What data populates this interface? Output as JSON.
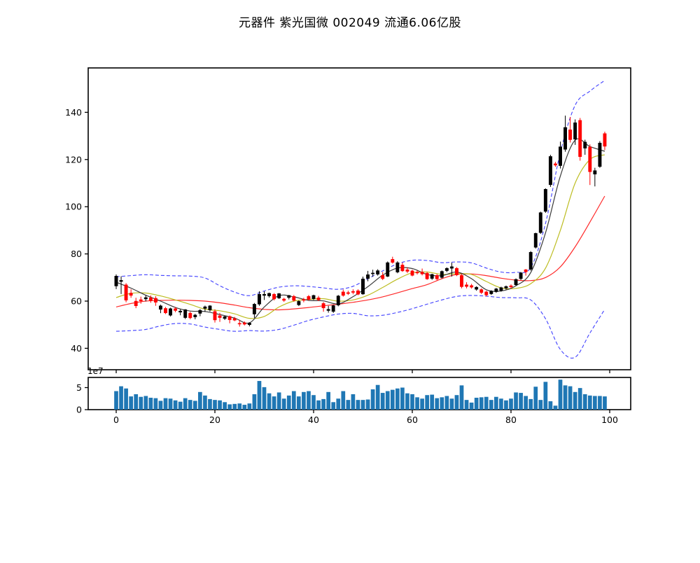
{
  "title": "元器件  紫光国微  002049  流通6.06亿股",
  "chart_data": {
    "type": "candlestick",
    "title": "元器件  紫光国微  002049  流通6.06亿股",
    "panels": [
      "price",
      "volume"
    ],
    "price_axis": {
      "ticks": [
        40,
        60,
        80,
        100,
        120,
        140
      ],
      "range": [
        31,
        159
      ]
    },
    "index_axis": {
      "ticks": [
        0,
        20,
        40,
        60,
        80,
        100
      ],
      "range": [
        -5.7,
        104.3
      ]
    },
    "volume_axis": {
      "ticks": [
        0,
        5
      ],
      "offset_label": "1e7",
      "range": [
        0,
        7.3
      ],
      "unit": "1e7"
    },
    "grid": false,
    "legend": "none",
    "colors": {
      "up": "#000000",
      "down": "#ff0000",
      "ma_fast": "#3a3a3a",
      "ma_mid": "#bdbd22",
      "ma_slow": "#ff2a2a",
      "band": "#4040ff",
      "volume": "#1f77b4",
      "frame": "#000000"
    },
    "candles_format": [
      "open",
      "high",
      "low",
      "close"
    ],
    "candles": [
      [
        66.4,
        71.3,
        65.1,
        70.6
      ],
      [
        68.3,
        70.5,
        63.0,
        68.8
      ],
      [
        66.9,
        67.6,
        59.5,
        60.4
      ],
      [
        63.4,
        65.0,
        61.4,
        62.4
      ],
      [
        60.0,
        61.4,
        57.0,
        58.0
      ],
      [
        60.6,
        61.9,
        58.9,
        60.1
      ],
      [
        60.9,
        62.4,
        59.9,
        61.5
      ],
      [
        61.4,
        62.4,
        59.3,
        60.2
      ],
      [
        61.2,
        62.1,
        58.0,
        59.5
      ],
      [
        56.5,
        58.5,
        54.9,
        58.0
      ],
      [
        56.9,
        57.5,
        54.5,
        55.0
      ],
      [
        54.0,
        57.2,
        53.5,
        56.8
      ],
      [
        56.8,
        57.5,
        55.3,
        56.0
      ],
      [
        55.3,
        56.5,
        54.0,
        55.8
      ],
      [
        53.0,
        56.6,
        52.4,
        56.4
      ],
      [
        54.9,
        55.5,
        52.3,
        52.9
      ],
      [
        53.3,
        54.6,
        52.3,
        54.1
      ],
      [
        54.8,
        56.6,
        53.6,
        56.1
      ],
      [
        56.9,
        58.1,
        55.4,
        57.6
      ],
      [
        56.2,
        58.3,
        55.6,
        58.0
      ],
      [
        55.6,
        56.5,
        50.9,
        52.0
      ],
      [
        53.8,
        55.0,
        51.2,
        53.0
      ],
      [
        52.6,
        53.8,
        52.0,
        53.4
      ],
      [
        53.5,
        53.9,
        50.6,
        52.1
      ],
      [
        52.6,
        53.3,
        51.5,
        51.9
      ],
      [
        50.6,
        52.1,
        49.2,
        50.4
      ],
      [
        50.8,
        51.4,
        49.7,
        50.2
      ],
      [
        50.0,
        51.0,
        49.3,
        50.7
      ],
      [
        54.5,
        59.2,
        52.9,
        58.7
      ],
      [
        58.7,
        64.2,
        58.0,
        62.9
      ],
      [
        62.4,
        64.2,
        60.5,
        62.9
      ],
      [
        62.2,
        63.6,
        61.5,
        63.3
      ],
      [
        62.9,
        63.4,
        60.3,
        60.9
      ],
      [
        61.3,
        63.4,
        60.9,
        63.2
      ],
      [
        60.9,
        61.4,
        59.7,
        60.3
      ],
      [
        61.5,
        62.6,
        60.7,
        62.4
      ],
      [
        62.0,
        62.6,
        59.8,
        60.3
      ],
      [
        58.4,
        60.3,
        57.9,
        59.9
      ],
      [
        60.7,
        61.4,
        59.5,
        60.3
      ],
      [
        62.0,
        62.6,
        60.2,
        60.7
      ],
      [
        61.0,
        62.7,
        60.5,
        62.4
      ],
      [
        61.4,
        62.2,
        60.0,
        60.5
      ],
      [
        59.0,
        59.6,
        55.5,
        57.1
      ],
      [
        56.0,
        58.0,
        55.1,
        56.5
      ],
      [
        55.6,
        58.4,
        55.0,
        58.1
      ],
      [
        58.3,
        62.6,
        57.8,
        62.2
      ],
      [
        63.9,
        64.9,
        61.9,
        62.4
      ],
      [
        63.6,
        64.4,
        62.6,
        63.2
      ],
      [
        64.1,
        65.0,
        62.9,
        63.7
      ],
      [
        64.4,
        65.0,
        62.5,
        62.9
      ],
      [
        63.0,
        70.4,
        62.7,
        69.4
      ],
      [
        69.6,
        72.8,
        68.4,
        71.2
      ],
      [
        71.6,
        73.3,
        70.3,
        71.9
      ],
      [
        71.4,
        73.5,
        70.8,
        72.9
      ],
      [
        70.9,
        72.3,
        68.9,
        69.5
      ],
      [
        70.5,
        76.8,
        70.2,
        76.3
      ],
      [
        77.7,
        78.8,
        75.9,
        76.4
      ],
      [
        72.3,
        76.9,
        71.8,
        76.3
      ],
      [
        75.3,
        76.3,
        72.4,
        72.8
      ],
      [
        73.3,
        74.3,
        71.9,
        72.6
      ],
      [
        72.8,
        73.3,
        70.5,
        70.9
      ],
      [
        72.3,
        73.0,
        71.3,
        71.9
      ],
      [
        72.3,
        73.8,
        70.9,
        71.5
      ],
      [
        71.8,
        72.4,
        69.0,
        69.4
      ],
      [
        69.6,
        71.6,
        69.0,
        71.3
      ],
      [
        70.9,
        71.5,
        68.9,
        69.4
      ],
      [
        70.0,
        73.0,
        69.6,
        72.6
      ],
      [
        72.9,
        74.3,
        72.3,
        73.9
      ],
      [
        73.9,
        76.3,
        70.4,
        74.6
      ],
      [
        73.9,
        74.4,
        70.6,
        71.1
      ],
      [
        70.9,
        71.4,
        65.4,
        66.1
      ],
      [
        66.9,
        68.0,
        65.4,
        66.2
      ],
      [
        66.6,
        67.3,
        65.3,
        65.9
      ],
      [
        65.0,
        66.3,
        64.4,
        65.9
      ],
      [
        64.9,
        65.4,
        63.0,
        63.6
      ],
      [
        63.9,
        64.4,
        62.0,
        62.6
      ],
      [
        63.1,
        64.6,
        62.6,
        64.2
      ],
      [
        64.0,
        65.6,
        63.5,
        65.2
      ],
      [
        64.5,
        66.1,
        64.0,
        65.7
      ],
      [
        65.5,
        66.6,
        64.9,
        66.2
      ],
      [
        66.5,
        67.1,
        65.3,
        66.0
      ],
      [
        66.9,
        69.6,
        66.4,
        69.2
      ],
      [
        69.5,
        72.3,
        68.9,
        72.0
      ],
      [
        73.3,
        73.6,
        70.8,
        72.4
      ],
      [
        73.5,
        81.2,
        72.9,
        80.7
      ],
      [
        82.8,
        89.0,
        82.3,
        88.7
      ],
      [
        89.0,
        97.9,
        88.5,
        97.5
      ],
      [
        98.0,
        107.8,
        97.4,
        107.4
      ],
      [
        109.3,
        122.0,
        108.4,
        121.3
      ],
      [
        118.2,
        119.0,
        116.9,
        117.6
      ],
      [
        117.4,
        127.6,
        116.2,
        125.4
      ],
      [
        124.3,
        138.6,
        123.3,
        133.6
      ],
      [
        132.6,
        138.0,
        127.2,
        128.4
      ],
      [
        128.6,
        137.0,
        126.2,
        135.6
      ],
      [
        136.6,
        137.6,
        119.5,
        121.2
      ],
      [
        124.8,
        128.4,
        122.0,
        127.4
      ],
      [
        125.3,
        126.4,
        109.2,
        114.8
      ],
      [
        113.8,
        116.5,
        108.6,
        115.3
      ],
      [
        117.0,
        127.8,
        116.5,
        127.0
      ],
      [
        131.0,
        131.8,
        124.0,
        125.6
      ]
    ],
    "volumes_1e7": [
      4.2,
      5.3,
      4.8,
      3.0,
      3.5,
      2.9,
      3.1,
      2.7,
      2.6,
      2.0,
      2.6,
      2.5,
      2.1,
      1.8,
      2.6,
      2.2,
      2.0,
      4.0,
      3.2,
      2.4,
      2.2,
      2.1,
      1.7,
      1.2,
      1.3,
      1.4,
      1.1,
      1.4,
      3.5,
      6.5,
      5.1,
      3.7,
      3.0,
      3.9,
      2.5,
      3.2,
      4.2,
      3.0,
      4.0,
      4.2,
      3.3,
      2.1,
      2.4,
      4.0,
      1.7,
      2.5,
      4.2,
      2.2,
      3.5,
      2.2,
      2.2,
      2.3,
      4.6,
      5.6,
      3.8,
      4.2,
      4.5,
      4.8,
      5.0,
      3.7,
      3.5,
      2.8,
      2.5,
      3.3,
      3.4,
      2.6,
      2.8,
      3.1,
      2.5,
      3.3,
      5.5,
      2.2,
      1.6,
      2.7,
      2.8,
      2.9,
      2.2,
      2.9,
      2.5,
      2.1,
      2.5,
      3.9,
      3.8,
      3.1,
      2.4,
      5.2,
      2.2,
      6.3,
      1.9,
      0.9,
      6.8,
      5.5,
      5.3,
      4.0,
      4.9,
      3.5,
      3.2,
      3.1,
      3.1,
      3.0
    ],
    "overlays": {
      "sample_indices": [
        0,
        3,
        6,
        9,
        12,
        15,
        18,
        21,
        24,
        27,
        30,
        33,
        36,
        39,
        42,
        45,
        48,
        51,
        54,
        57,
        60,
        63,
        66,
        69,
        72,
        75,
        78,
        81,
        84,
        87,
        90,
        93,
        96,
        99
      ],
      "ma_fast": [
        68.0,
        65.5,
        62.5,
        60.0,
        57.3,
        55.8,
        55.6,
        54.3,
        52.8,
        50.8,
        57.5,
        62.3,
        61.8,
        60.3,
        60.1,
        58.8,
        61.9,
        66.1,
        71.0,
        74.0,
        73.8,
        71.3,
        70.8,
        72.3,
        69.5,
        64.8,
        64.3,
        66.5,
        72.1,
        89.0,
        113.0,
        128.2,
        125.5,
        123.5
      ],
      "ma_mid": [
        61.5,
        63.3,
        63.4,
        62.2,
        60.5,
        58.6,
        56.6,
        55.9,
        54.6,
        52.7,
        53.5,
        57.5,
        60.0,
        60.7,
        61.0,
        60.0,
        60.5,
        62.5,
        65.8,
        69.3,
        72.0,
        72.3,
        71.3,
        71.6,
        71.3,
        68.3,
        65.6,
        65.4,
        67.4,
        74.0,
        90.0,
        110.0,
        120.0,
        122.0
      ],
      "ma_slow": [
        57.5,
        59.0,
        60.0,
        60.3,
        60.4,
        60.3,
        60.0,
        59.3,
        58.3,
        57.2,
        56.5,
        56.3,
        56.7,
        57.3,
        58.0,
        58.7,
        59.5,
        60.5,
        61.8,
        63.5,
        65.3,
        67.0,
        69.5,
        71.3,
        71.5,
        70.8,
        69.7,
        68.9,
        68.7,
        70.0,
        74.5,
        83.0,
        93.5,
        104.5
      ],
      "boll_upper": [
        70.3,
        70.8,
        71.2,
        70.9,
        70.7,
        70.6,
        69.8,
        66.5,
        63.8,
        62.3,
        64.3,
        65.9,
        66.5,
        66.2,
        65.6,
        65.0,
        66.3,
        69.5,
        72.8,
        75.8,
        77.3,
        77.2,
        76.3,
        76.6,
        76.2,
        74.0,
        72.3,
        72.2,
        74.2,
        93.0,
        123.0,
        143.0,
        149.0,
        153.5
      ],
      "boll_lower": [
        47.2,
        47.5,
        48.0,
        49.5,
        50.5,
        50.3,
        49.0,
        48.0,
        47.2,
        47.5,
        47.3,
        48.0,
        49.8,
        51.8,
        53.3,
        54.5,
        54.8,
        53.8,
        54.0,
        55.2,
        56.8,
        58.7,
        60.5,
        62.0,
        62.4,
        62.1,
        61.5,
        61.4,
        60.5,
        52.5,
        39.5,
        36.2,
        46.5,
        56.5
      ]
    }
  }
}
